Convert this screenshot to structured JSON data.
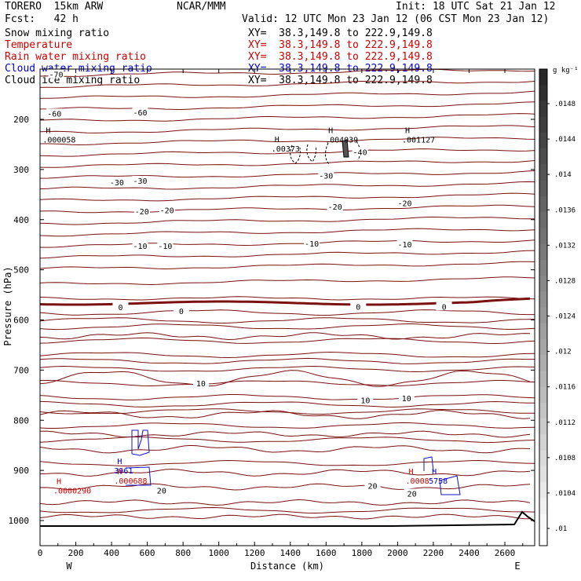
{
  "header": {
    "model": "TORERO  15km ARW",
    "center": "NCAR/MMM",
    "init": "Init: 18 UTC Sat 21 Jan 12",
    "fcst": "Fcst:   42 h",
    "valid": "Valid: 12 UTC Mon 23 Jan 12 (06 CST Mon 23 Jan 12)",
    "fields": [
      {
        "name": "Snow mixing ratio",
        "xy": "XY=  38.3,149.8 to 222.9,149.8",
        "color": "#000000"
      },
      {
        "name": "Temperature",
        "xy": "XY=  38.3,149.8 to 222.9,149.8",
        "color": "#cc0000"
      },
      {
        "name": "Rain water mixing ratio",
        "xy": "XY=  38.3,149.8 to 222.9,149.8",
        "color": "#cc0000"
      },
      {
        "name": "Cloud water mixing ratio",
        "xy": "XY=  38.3,149.8 to 222.9,149.8",
        "color": "#0000cc"
      },
      {
        "name": "Cloud ice mixing ratio",
        "xy": "XY=  38.3,149.8 to 222.9,149.8",
        "color": "#000000"
      }
    ]
  },
  "chart_data": {
    "type": "contour-cross-section",
    "xlabel": "Distance (km)",
    "ylabel": "Pressure (hPa)",
    "xlim": [
      0,
      2750
    ],
    "ylim": [
      1050,
      100
    ],
    "x_ticks": [
      0,
      200,
      400,
      600,
      800,
      1000,
      1200,
      1400,
      1600,
      1800,
      2000,
      2200,
      2400,
      2600
    ],
    "y_ticks": [
      200,
      300,
      400,
      500,
      600,
      700,
      800,
      900,
      1000
    ],
    "left_end": "W",
    "right_end": "E",
    "colorbar": {
      "unit": "g kg⁻¹",
      "labels": [
        ".0148",
        ".0144",
        ".014",
        ".0136",
        ".0132",
        ".0128",
        ".0124",
        ".012",
        ".0116",
        ".0112",
        ".0108",
        ".0104",
        ".01"
      ]
    },
    "isotherm_labels": [
      {
        "text": "-70",
        "x": 90,
        "p": 110
      },
      {
        "text": "-60",
        "x": 80,
        "p": 188
      },
      {
        "text": "-60",
        "x": 560,
        "p": 186
      },
      {
        "text": "-40",
        "x": 1790,
        "p": 265
      },
      {
        "text": "-30",
        "x": 430,
        "p": 325
      },
      {
        "text": "-30",
        "x": 560,
        "p": 322
      },
      {
        "text": "-30",
        "x": 1600,
        "p": 312
      },
      {
        "text": "-20",
        "x": 570,
        "p": 383
      },
      {
        "text": "-20",
        "x": 710,
        "p": 381
      },
      {
        "text": "-20",
        "x": 1650,
        "p": 374
      },
      {
        "text": "-20",
        "x": 2040,
        "p": 367
      },
      {
        "text": "-10",
        "x": 560,
        "p": 452
      },
      {
        "text": "-10",
        "x": 700,
        "p": 452
      },
      {
        "text": "-10",
        "x": 1520,
        "p": 447
      },
      {
        "text": "-10",
        "x": 2040,
        "p": 449
      },
      {
        "text": "0",
        "x": 450,
        "p": 574
      },
      {
        "text": "0",
        "x": 790,
        "p": 582
      },
      {
        "text": "0",
        "x": 1780,
        "p": 573
      },
      {
        "text": "0",
        "x": 2260,
        "p": 573
      },
      {
        "text": "10",
        "x": 900,
        "p": 726
      },
      {
        "text": "10",
        "x": 1820,
        "p": 760
      },
      {
        "text": "10",
        "x": 2050,
        "p": 756
      },
      {
        "text": "20",
        "x": 680,
        "p": 940
      },
      {
        "text": "20",
        "x": 1860,
        "p": 930
      },
      {
        "text": "20",
        "x": 2080,
        "p": 946
      }
    ],
    "maxima": [
      {
        "text": ".000058",
        "x": 120,
        "p": 240,
        "color": "#000000"
      },
      {
        "text": ".00373",
        "x": 1400,
        "p": 258,
        "color": "#000000"
      },
      {
        "text": ".004039",
        "x": 1700,
        "p": 240,
        "color": "#000000"
      },
      {
        "text": ".001127",
        "x": 2130,
        "p": 240,
        "color": "#000000"
      },
      {
        "text": ".0000290",
        "x": 180,
        "p": 940,
        "color": "#cc0000"
      },
      {
        "text": ".000688",
        "x": 520,
        "p": 920,
        "color": "#cc0000"
      },
      {
        "text": ".0008",
        "x": 2150,
        "p": 920,
        "color": "#cc0000"
      },
      {
        "text": "3961",
        "x": 520,
        "p": 900,
        "color": "#0000cc"
      },
      {
        "text": "5758",
        "x": 2280,
        "p": 920,
        "color": "#0000cc"
      }
    ],
    "h_marker": "H"
  }
}
